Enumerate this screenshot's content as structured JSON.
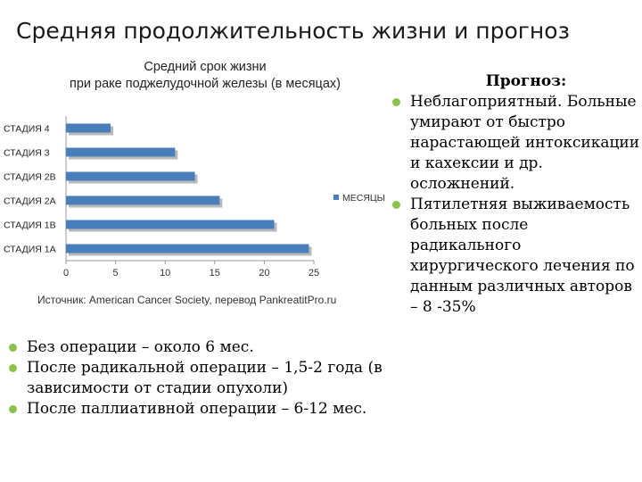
{
  "slide": {
    "title": "Средняя продолжительность жизни и прогноз"
  },
  "chart_data": {
    "type": "bar",
    "orientation": "horizontal",
    "title_line1": "Средний срок жизни",
    "title_line2": "при раке поджелудочной железы (в месяцах)",
    "categories": [
      "СТАДИЯ 4",
      "СТАДИЯ 3",
      "СТАДИЯ 2B",
      "СТАДИЯ 2A",
      "СТАДИЯ 1B",
      "СТАДИЯ 1A"
    ],
    "series": [
      {
        "name": "МЕСЯЦЫ",
        "values": [
          4.5,
          11,
          13,
          15.5,
          21,
          24.5
        ],
        "color": "#4a7ebb"
      }
    ],
    "xlim": [
      0,
      25
    ],
    "xticks": [
      "0",
      "5",
      "10",
      "15",
      "20",
      "25"
    ],
    "legend_position": "right",
    "grid": false,
    "source": "Источник: American Cancer Society, перевод PankreatitPro.ru"
  },
  "right_panel": {
    "heading": "Прогноз:",
    "items": [
      "Неблагоприятный. Больные умирают от быстро нарастающей интоксикации и кахексии и др. осложнений.",
      "Пятилетняя выживаемость больных после радикального хирургического лечения по данным различных авторов – 8 -35%"
    ]
  },
  "left_panel": {
    "items": [
      "Без операции – около 6 мес.",
      "После радикальной операции – 1,5-2 года (в зависимости от стадии опухоли)",
      "После паллиативной операции – 6-12 мес."
    ]
  },
  "colors": {
    "bullet": "#8bc34a",
    "bar": "#4a7ebb"
  }
}
